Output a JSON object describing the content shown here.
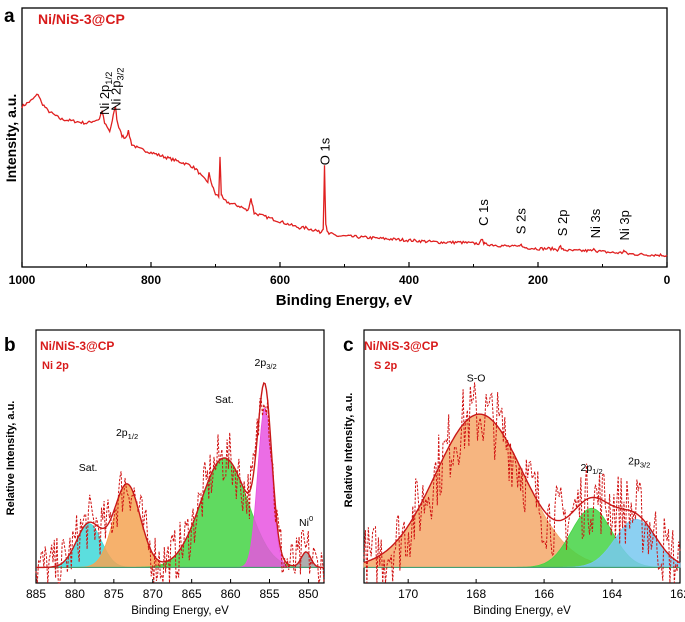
{
  "chart_data": [
    {
      "panel": "a",
      "type": "line",
      "title": "Ni/NiS-3@CP",
      "xlabel": "Binding Energy, eV",
      "ylabel": "Intensity, a.u.",
      "xlim": [
        1000,
        0
      ],
      "xticks": [
        1000,
        800,
        600,
        400,
        200,
        0
      ],
      "ylim": [
        0,
        100
      ],
      "line_color": "#e02020",
      "peaks": [
        {
          "label": "Ni 2p",
          "sub": "1/2",
          "x": 873,
          "y": 66
        },
        {
          "label": "Ni 2p",
          "sub": "3/2",
          "x": 855,
          "y": 68
        },
        {
          "label": "O 1s",
          "x": 531,
          "y": 42
        },
        {
          "label": "C 1s",
          "x": 285,
          "y": 13
        },
        {
          "label": "S 2s",
          "x": 227,
          "y": 9
        },
        {
          "label": "S 2p",
          "x": 163,
          "y": 8
        },
        {
          "label": "Ni 3s",
          "x": 112,
          "y": 7
        },
        {
          "label": "Ni 3p",
          "x": 67,
          "y": 6
        }
      ],
      "series": [
        {
          "name": "survey",
          "x": [
            1000,
            985,
            975,
            970,
            960,
            950,
            940,
            920,
            900,
            890,
            880,
            876,
            872,
            868,
            864,
            860,
            857,
            855,
            853,
            850,
            845,
            840,
            835,
            830,
            820,
            800,
            780,
            760,
            740,
            730,
            720,
            712,
            710,
            705,
            700,
            695,
            693,
            691,
            689,
            686,
            680,
            670,
            660,
            655,
            650,
            645,
            642,
            640,
            630,
            620,
            610,
            600,
            590,
            580,
            570,
            560,
            550,
            545,
            540,
            536,
            533,
            531,
            529,
            527,
            524,
            520,
            510,
            500,
            450,
            400,
            350,
            320,
            300,
            290,
            286,
            284,
            282,
            275,
            260,
            240,
            230,
            227,
            225,
            220,
            200,
            180,
            170,
            165,
            162,
            160,
            150,
            130,
            115,
            112,
            110,
            100,
            80,
            70,
            67,
            64,
            60,
            40,
            20,
            0
          ],
          "y": [
            72,
            75,
            78,
            74,
            70,
            68,
            66,
            65,
            64,
            65,
            66,
            70,
            64,
            62,
            60,
            65,
            70,
            72,
            66,
            62,
            58,
            57,
            60,
            54,
            52,
            50,
            48,
            46,
            44,
            42,
            38,
            36,
            40,
            34,
            30,
            29,
            48,
            30,
            28,
            27,
            26,
            25,
            24,
            23,
            22,
            28,
            24,
            21,
            20,
            19,
            18,
            17,
            16,
            15,
            14,
            14,
            13,
            13,
            12,
            12,
            14,
            44,
            16,
            12,
            11,
            11,
            10,
            10,
            9,
            8,
            7,
            7,
            6.5,
            6.5,
            9,
            6.5,
            6,
            6,
            5.5,
            5,
            5,
            6.5,
            5,
            4.5,
            4,
            4,
            3.5,
            5,
            3.5,
            3.5,
            3,
            3,
            3,
            4,
            3,
            2.5,
            2,
            2,
            3,
            2,
            1.5,
            1.2,
            1,
            0.8
          ]
        }
      ]
    },
    {
      "panel": "b",
      "type": "line",
      "title": "Ni/NiS-3@CP",
      "subtitle": "Ni 2p",
      "xlabel": "Binding Energy, eV",
      "ylabel": "Relative Intensity, a.u.",
      "xlim": [
        885,
        848
      ],
      "xticks": [
        885,
        880,
        875,
        870,
        865,
        860,
        855,
        850
      ],
      "ylim": [
        0,
        100
      ],
      "components": [
        {
          "name": "Sat.",
          "center": 878.2,
          "sigma": 1.6,
          "height": 20,
          "color": "#3ed8d8"
        },
        {
          "name": "2p1/2",
          "center": 873.3,
          "sigma": 1.7,
          "height": 38,
          "color": "#f5a352"
        },
        {
          "name": "Sat.",
          "center": 860.8,
          "sigma": 3.0,
          "height": 50,
          "color": "#44d444"
        },
        {
          "name": "2p3/2",
          "center": 855.6,
          "sigma": 0.9,
          "height": 73,
          "color": "#e854e0"
        },
        {
          "name": "Ni0",
          "center": 850.3,
          "sigma": 0.6,
          "height": 7,
          "color": "#a0a0a0"
        }
      ],
      "annotations": [
        {
          "label": "Sat.",
          "x": 878.3,
          "y": 47
        },
        {
          "label": "2p",
          "sub": "1/2",
          "x": 873.3,
          "y": 63
        },
        {
          "label": "Sat.",
          "x": 860.8,
          "y": 78
        },
        {
          "label": "2p",
          "sub": "3/2",
          "x": 855.5,
          "y": 95
        },
        {
          "label": "Ni",
          "sup": "0",
          "x": 850.3,
          "y": 22
        }
      ]
    },
    {
      "panel": "c",
      "type": "line",
      "title": "Ni/NiS-3@CP",
      "subtitle": "S 2p",
      "xlabel": "Binding Energy, eV",
      "ylabel": "Relative Intensity, a.u.",
      "xlim": [
        171.3,
        162
      ],
      "xticks": [
        170,
        168,
        166,
        164,
        162
      ],
      "ylim": [
        0,
        100
      ],
      "components": [
        {
          "name": "S-O",
          "center": 167.9,
          "sigma": 1.3,
          "height": 70,
          "color": "#f5a86a"
        },
        {
          "name": "2p1/2",
          "center": 164.6,
          "sigma": 0.6,
          "height": 27,
          "color": "#44d444"
        },
        {
          "name": "2p3/2",
          "center": 163.3,
          "sigma": 0.6,
          "height": 22,
          "color": "#78c8f0"
        }
      ],
      "annotations": [
        {
          "label": "S-O",
          "x": 168.0,
          "y": 88
        },
        {
          "label": "2p",
          "sub": "1/2",
          "x": 164.6,
          "y": 47
        },
        {
          "label": "2p",
          "sub": "3/2",
          "x": 163.2,
          "y": 50
        }
      ]
    }
  ],
  "labels": {
    "panel_a": "a",
    "panel_b": "b",
    "panel_c": "c"
  }
}
